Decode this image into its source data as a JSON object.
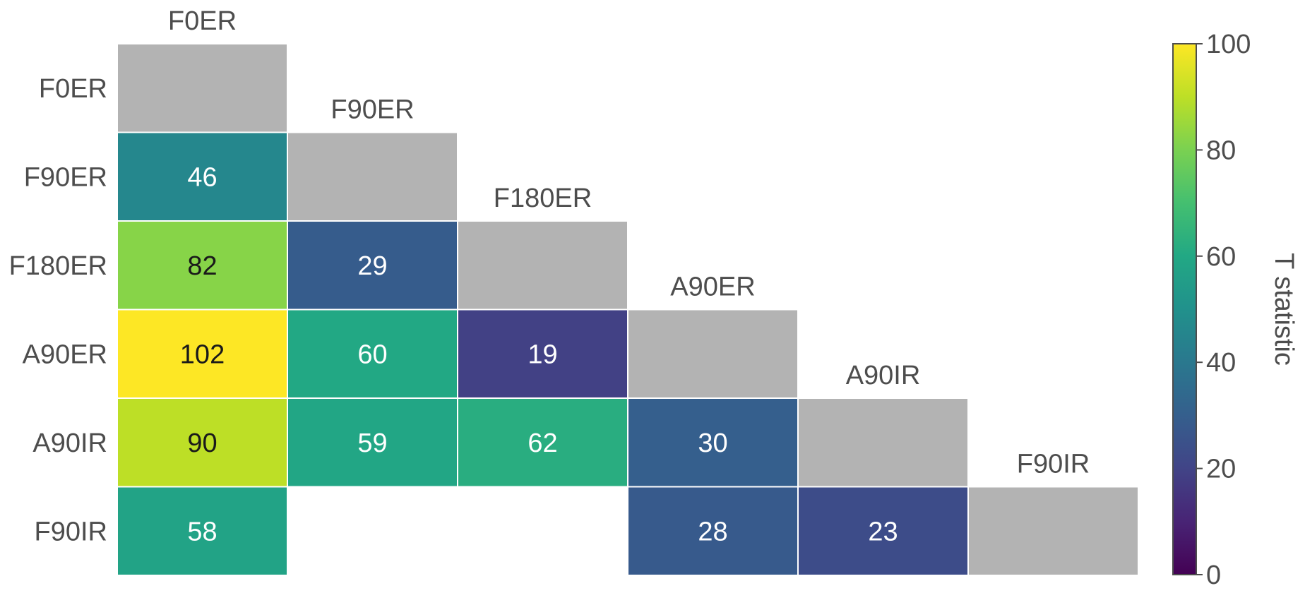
{
  "chart_data": {
    "type": "heatmap",
    "title": "",
    "row_labels": [
      "F0ER",
      "F90ER",
      "F180ER",
      "A90ER",
      "A90IR",
      "F90IR"
    ],
    "col_labels": [
      "F0ER",
      "F90ER",
      "F180ER",
      "A90ER",
      "A90IR",
      "F90IR"
    ],
    "values": [
      [
        null,
        null,
        null,
        null,
        null,
        null
      ],
      [
        46,
        null,
        null,
        null,
        null,
        null
      ],
      [
        82,
        29,
        null,
        null,
        null,
        null
      ],
      [
        102,
        60,
        19,
        null,
        null,
        null
      ],
      [
        90,
        59,
        62,
        30,
        null,
        null
      ],
      [
        58,
        null,
        null,
        28,
        23,
        null
      ]
    ],
    "diagonal_color": "#b3b3b3",
    "colormap": "viridis",
    "colorbar": {
      "label": "T statistic",
      "range": [
        0,
        100
      ],
      "ticks": [
        0,
        20,
        40,
        60,
        80,
        100
      ]
    },
    "cell_text_colors": {
      "light": "#ffffff",
      "dark": "#1a1a1a"
    }
  }
}
